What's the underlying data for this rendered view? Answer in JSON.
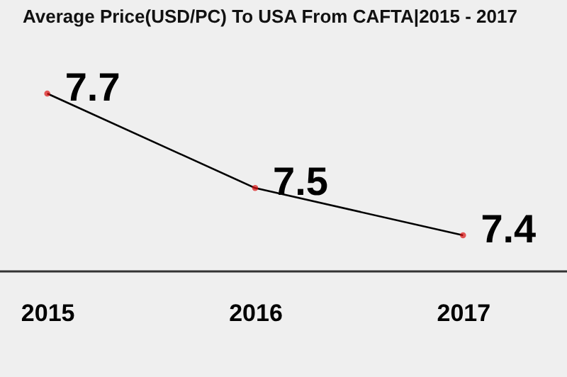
{
  "chart_data": {
    "type": "line",
    "title": "Average Price(USD/PC) To USA From CAFTA|2015 - 2017",
    "categories": [
      "2015",
      "2016",
      "2017"
    ],
    "series": [
      {
        "color": "#000000",
        "values": [
          7.7,
          7.5,
          7.4
        ]
      }
    ],
    "tick_labels": "x",
    "data_labels": true,
    "marker": "circle",
    "grid": false
  }
}
